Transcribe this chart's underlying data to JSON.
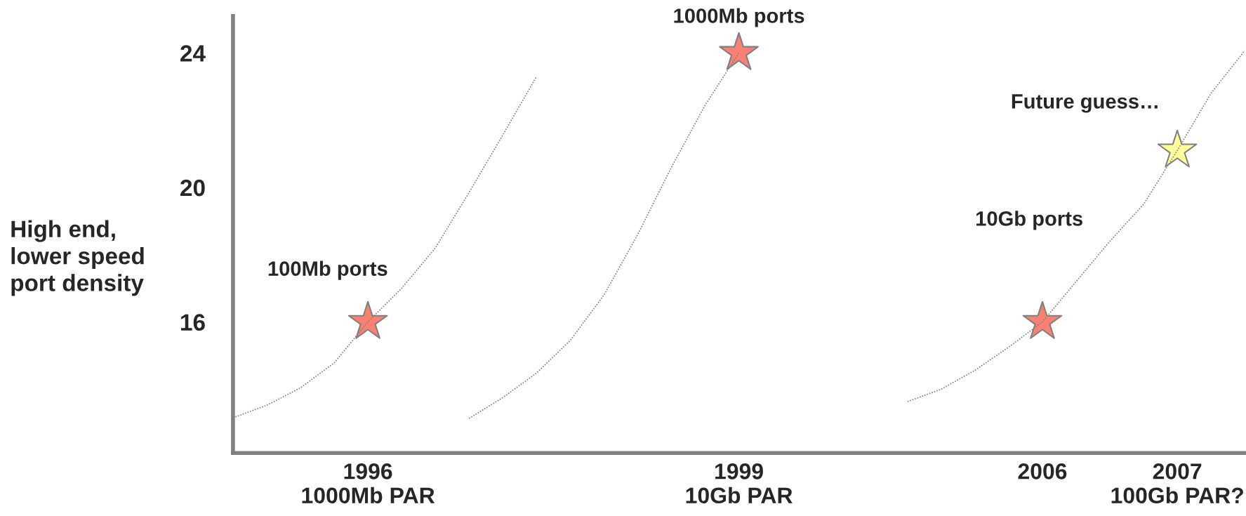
{
  "chart_data": {
    "type": "line",
    "ylabel": "High end,\nlower speed\nport density",
    "categories": [
      null,
      null,
      null,
      null,
      "1996\n1000Mb PAR",
      null,
      null,
      null,
      null,
      null,
      null,
      null,
      null,
      null,
      null,
      "1999\n10Gb PAR",
      null,
      null,
      null,
      null,
      null,
      null,
      null,
      null,
      "2006",
      null,
      null,
      null,
      "2007\n100Gb PAR?",
      null,
      null
    ],
    "ylim": [
      12.1,
      25.1
    ],
    "yticks": [
      16,
      20,
      24
    ],
    "grid": false,
    "legend": false,
    "series": [
      {
        "color": "#808080",
        "line_style": "dotted",
        "marker": "none",
        "values": [
          13.15,
          13.52,
          14.04,
          14.78,
          16.0,
          17.0,
          18.2,
          19.85,
          21.56,
          23.3,
          null,
          null,
          null,
          null,
          null,
          null,
          null,
          null,
          null,
          null,
          null,
          null,
          null,
          null,
          null,
          null,
          null,
          null,
          null,
          null,
          null
        ]
      },
      {
        "color": "#808080",
        "line_style": "dotted",
        "marker": "none",
        "values": [
          null,
          null,
          null,
          null,
          null,
          null,
          null,
          13.13,
          13.75,
          14.48,
          15.45,
          16.8,
          18.6,
          20.6,
          22.45,
          24.0,
          null,
          null,
          null,
          null,
          null,
          null,
          null,
          null,
          null,
          null,
          null,
          null,
          null,
          null,
          null
        ]
      },
      {
        "color": "#808080",
        "line_style": "dotted",
        "marker": "none",
        "values": [
          null,
          null,
          null,
          null,
          null,
          null,
          null,
          null,
          null,
          null,
          null,
          null,
          null,
          null,
          null,
          null,
          null,
          null,
          null,
          null,
          13.63,
          14.0,
          14.56,
          15.25,
          16.0,
          17.2,
          18.4,
          19.5,
          21.1,
          22.8,
          24.07
        ]
      },
      {
        "type": "scatter",
        "marker": "star",
        "values": [
          null,
          null,
          null,
          null,
          16.0,
          null,
          null,
          null,
          null,
          null,
          null,
          null,
          null,
          null,
          null,
          24.0,
          null,
          null,
          null,
          null,
          null,
          null,
          null,
          null,
          16.0,
          null,
          null,
          null,
          21.1,
          null,
          null
        ],
        "colors": [
          null,
          null,
          null,
          null,
          "#fa8072",
          null,
          null,
          null,
          null,
          null,
          null,
          null,
          null,
          null,
          null,
          "#fa8072",
          null,
          null,
          null,
          null,
          null,
          null,
          null,
          null,
          "#fa8072",
          null,
          null,
          null,
          "#ffff99",
          null,
          null
        ]
      }
    ],
    "annotations": [
      "100Mb ports",
      "1000Mb ports",
      "10Gb ports",
      "Future guess…"
    ]
  }
}
